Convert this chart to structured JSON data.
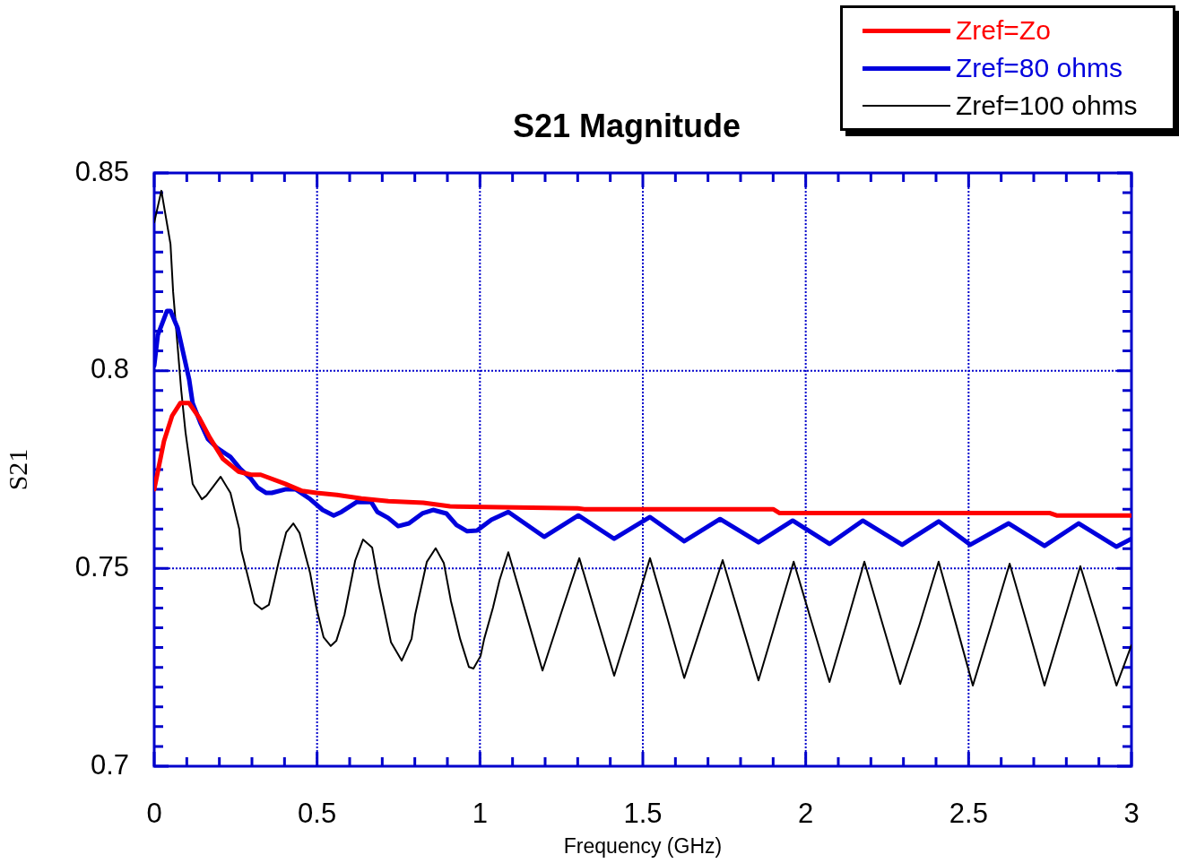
{
  "chart_data": {
    "type": "line",
    "title": "S21 Magnitude",
    "xlabel": "Frequency (GHz)",
    "ylabel": "S21",
    "xlim": [
      0,
      3
    ],
    "ylim": [
      0.7,
      0.85
    ],
    "xticks": [
      0,
      {
        "value": 0.1,
        "label": null
      },
      {
        "value": 0.2,
        "label": null
      },
      {
        "value": 0.3,
        "label": null
      },
      {
        "value": 0.4,
        "label": null
      },
      0.5,
      {
        "value": 0.6,
        "label": null
      },
      {
        "value": 0.7,
        "label": null
      },
      {
        "value": 0.8,
        "label": null
      },
      {
        "value": 0.9,
        "label": null
      },
      1,
      {
        "value": 1.1,
        "label": null
      },
      {
        "value": 1.2,
        "label": null
      },
      {
        "value": 1.3,
        "label": null
      },
      {
        "value": 1.4,
        "label": null
      },
      1.5,
      {
        "value": 1.6,
        "label": null
      },
      {
        "value": 1.7,
        "label": null
      },
      {
        "value": 1.8,
        "label": null
      },
      {
        "value": 1.9,
        "label": null
      },
      2,
      {
        "value": 2.1,
        "label": null
      },
      {
        "value": 2.2,
        "label": null
      },
      {
        "value": 2.3,
        "label": null
      },
      {
        "value": 2.4,
        "label": null
      },
      2.5,
      {
        "value": 2.6,
        "label": null
      },
      {
        "value": 2.7,
        "label": null
      },
      {
        "value": 2.8,
        "label": null
      },
      {
        "value": 2.9,
        "label": null
      },
      3
    ],
    "yticks": [
      0.7,
      {
        "value": 0.705,
        "label": null
      },
      {
        "value": 0.71,
        "label": null
      },
      {
        "value": 0.715,
        "label": null
      },
      {
        "value": 0.72,
        "label": null
      },
      {
        "value": 0.725,
        "label": null
      },
      {
        "value": 0.73,
        "label": null
      },
      {
        "value": 0.735,
        "label": null
      },
      {
        "value": 0.74,
        "label": null
      },
      {
        "value": 0.745,
        "label": null
      },
      0.75,
      {
        "value": 0.755,
        "label": null
      },
      {
        "value": 0.76,
        "label": null
      },
      {
        "value": 0.765,
        "label": null
      },
      {
        "value": 0.77,
        "label": null
      },
      {
        "value": 0.775,
        "label": null
      },
      {
        "value": 0.78,
        "label": null
      },
      {
        "value": 0.785,
        "label": null
      },
      {
        "value": 0.79,
        "label": null
      },
      {
        "value": 0.795,
        "label": null
      },
      0.8,
      {
        "value": 0.805,
        "label": null
      },
      {
        "value": 0.81,
        "label": null
      },
      {
        "value": 0.815,
        "label": null
      },
      {
        "value": 0.82,
        "label": null
      },
      {
        "value": 0.825,
        "label": null
      },
      {
        "value": 0.83,
        "label": null
      },
      {
        "value": 0.835,
        "label": null
      },
      {
        "value": 0.84,
        "label": null
      },
      {
        "value": 0.845,
        "label": null
      },
      0.85
    ],
    "grid": true,
    "legend": "top right",
    "marker": "none",
    "line_style": "solid",
    "series": [
      {
        "name": "Zref=Zo",
        "color": "#ff0000",
        "x": [
          0,
          0.03,
          0.055,
          0.08,
          0.107,
          0.138,
          0.171,
          0.211,
          0.259,
          0.297,
          0.327,
          0.402,
          0.454,
          0.498,
          0.561,
          0.636,
          0.719,
          0.826,
          0.908,
          1.3,
          1.32,
          1.9,
          1.92,
          2.75,
          2.77,
          3.0
        ],
        "values": [
          0.77,
          0.7822,
          0.7886,
          0.7918,
          0.7918,
          0.7881,
          0.783,
          0.7777,
          0.7745,
          0.7737,
          0.7737,
          0.7714,
          0.7696,
          0.7691,
          0.7686,
          0.7677,
          0.767,
          0.7666,
          0.7657,
          0.7652,
          0.765,
          0.765,
          0.764,
          0.764,
          0.7634,
          0.7634
        ]
      },
      {
        "name": "Zref=80 ohms",
        "color": "#0000dd",
        "x": [
          0,
          0.011,
          0.039,
          0.05,
          0.072,
          0.107,
          0.118,
          0.143,
          0.165,
          0.193,
          0.234,
          0.264,
          0.297,
          0.317,
          0.344,
          0.361,
          0.402,
          0.435,
          0.476,
          0.517,
          0.551,
          0.575,
          0.622,
          0.666,
          0.685,
          0.718,
          0.749,
          0.782,
          0.823,
          0.856,
          0.897,
          0.928,
          0.961,
          0.991,
          1.035,
          1.087,
          1.197,
          1.302,
          1.412,
          1.522,
          1.627,
          1.737,
          1.855,
          1.96,
          2.073,
          2.175,
          2.296,
          2.408,
          2.505,
          2.623,
          2.733,
          2.838,
          2.954,
          3.0
        ],
        "values": [
          0.8013,
          0.809,
          0.8151,
          0.8151,
          0.8108,
          0.7979,
          0.7918,
          0.7866,
          0.7827,
          0.7805,
          0.7782,
          0.7752,
          0.7727,
          0.7705,
          0.7691,
          0.7691,
          0.77,
          0.77,
          0.7677,
          0.7648,
          0.7634,
          0.7643,
          0.7668,
          0.7668,
          0.7643,
          0.7628,
          0.7607,
          0.7614,
          0.7639,
          0.7648,
          0.7639,
          0.761,
          0.7594,
          0.7596,
          0.7623,
          0.7643,
          0.758,
          0.7634,
          0.7575,
          0.763,
          0.7569,
          0.7625,
          0.7566,
          0.7621,
          0.7562,
          0.7621,
          0.756,
          0.7619,
          0.756,
          0.7614,
          0.7557,
          0.7614,
          0.7555,
          0.7575
        ]
      },
      {
        "name": "Zref=100 ohms",
        "color": "#000000",
        "x": [
          0,
          0.022,
          0.05,
          0.058,
          0.083,
          0.096,
          0.118,
          0.146,
          0.16,
          0.204,
          0.234,
          0.261,
          0.267,
          0.308,
          0.33,
          0.352,
          0.383,
          0.405,
          0.427,
          0.446,
          0.479,
          0.498,
          0.52,
          0.542,
          0.559,
          0.584,
          0.617,
          0.641,
          0.669,
          0.691,
          0.727,
          0.76,
          0.79,
          0.801,
          0.837,
          0.864,
          0.889,
          0.911,
          0.939,
          0.966,
          0.98,
          1.002,
          1.013,
          1.04,
          1.06,
          1.087,
          1.14,
          1.192,
          1.248,
          1.305,
          1.358,
          1.412,
          1.467,
          1.522,
          1.575,
          1.627,
          1.686,
          1.745,
          1.8,
          1.855,
          1.909,
          1.963,
          2.018,
          2.073,
          2.127,
          2.18,
          2.235,
          2.29,
          2.349,
          2.408,
          2.461,
          2.513,
          2.57,
          2.626,
          2.68,
          2.733,
          2.788,
          2.843,
          2.899,
          2.954,
          3.0
        ],
        "values": [
          0.8375,
          0.8455,
          0.832,
          0.82,
          0.795,
          0.7845,
          0.7714,
          0.7675,
          0.7684,
          0.7732,
          0.7691,
          0.76,
          0.7548,
          0.7412,
          0.7397,
          0.7408,
          0.752,
          0.7591,
          0.7614,
          0.759,
          0.7487,
          0.74,
          0.7326,
          0.7304,
          0.7317,
          0.7383,
          0.752,
          0.7573,
          0.7553,
          0.7453,
          0.7313,
          0.7267,
          0.7322,
          0.7383,
          0.7517,
          0.7551,
          0.7514,
          0.7417,
          0.7322,
          0.7251,
          0.7247,
          0.7279,
          0.7322,
          0.7401,
          0.747,
          0.7541,
          0.739,
          0.7242,
          0.7384,
          0.7526,
          0.7378,
          0.7229,
          0.7375,
          0.7526,
          0.7375,
          0.7223,
          0.7372,
          0.7521,
          0.7369,
          0.7217,
          0.7367,
          0.7517,
          0.7365,
          0.7213,
          0.7365,
          0.7517,
          0.7362,
          0.7208,
          0.7357,
          0.7517,
          0.736,
          0.7204,
          0.7358,
          0.7512,
          0.7358,
          0.7204,
          0.7355,
          0.7506,
          0.7355,
          0.7204,
          0.7306
        ]
      }
    ]
  }
}
